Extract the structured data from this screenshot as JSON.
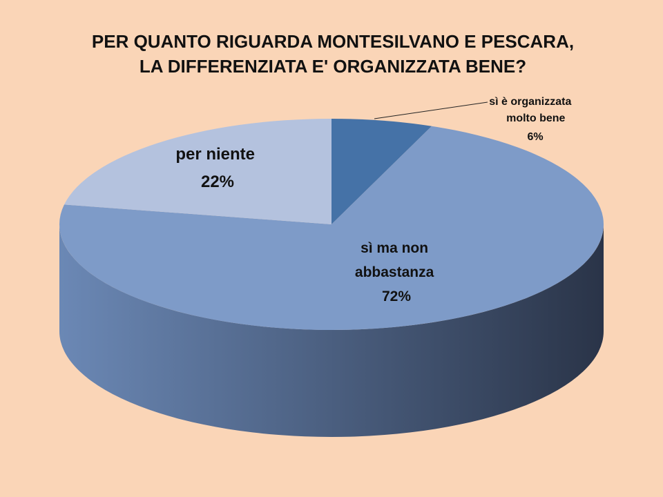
{
  "chart_data": {
    "type": "pie",
    "title_lines": [
      "PER QUANTO RIGUARDA MONTESILVANO E PESCARA,",
      "LA DIFFERENZIATA E' ORGANIZZATA BENE?"
    ],
    "slices": [
      {
        "label_lines": [
          "sì è organizzata",
          "molto bene"
        ],
        "value": 6,
        "value_label": "6%",
        "color": "#4572A7"
      },
      {
        "label_lines": [
          "sì ma non",
          "abbastanza"
        ],
        "value": 72,
        "value_label": "72%",
        "color": "#7E9BC8"
      },
      {
        "label_lines": [
          "per niente"
        ],
        "value": 22,
        "value_label": "22%",
        "color": "#B4C2DE"
      }
    ],
    "legend": "none",
    "style": "3d"
  }
}
